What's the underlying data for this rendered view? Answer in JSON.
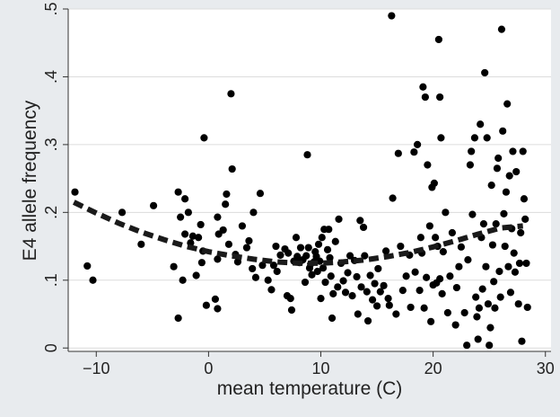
{
  "chart_data": {
    "type": "scatter",
    "title": "",
    "xlabel": "mean temperature (C)",
    "ylabel": "E4 allele frequency",
    "xlim": [
      -12.5,
      30.5
    ],
    "ylim": [
      -0.005,
      0.5
    ],
    "x_ticks": [
      -10,
      0,
      10,
      20,
      30
    ],
    "x_tick_labels": [
      "−10",
      "0",
      "10",
      "20",
      "30"
    ],
    "y_ticks": [
      0,
      0.1,
      0.2,
      0.3,
      0.4,
      0.5
    ],
    "y_tick_labels": [
      "0",
      ".1",
      ".2",
      ".3",
      ".4",
      ".5"
    ],
    "grid": "horizontal",
    "legend": "none",
    "colors": {
      "page_bg": "#e8ebee",
      "plot_bg": "#ffffff",
      "points": "#000000",
      "fit_line": "#1a1a1a",
      "grid": "#dcdcdc"
    },
    "points": [
      [
        -11.9,
        0.23
      ],
      [
        -10.8,
        0.121
      ],
      [
        -10.3,
        0.1
      ],
      [
        -7.7,
        0.2
      ],
      [
        -6.0,
        0.153
      ],
      [
        -4.9,
        0.21
      ],
      [
        -3.1,
        0.12
      ],
      [
        -2.7,
        0.044
      ],
      [
        -2.7,
        0.23
      ],
      [
        -2.5,
        0.193
      ],
      [
        -2.3,
        0.1
      ],
      [
        -2.1,
        0.22
      ],
      [
        -2.1,
        0.168
      ],
      [
        -1.8,
        0.2
      ],
      [
        -1.6,
        0.155
      ],
      [
        -1.4,
        0.165
      ],
      [
        -1.1,
        0.107
      ],
      [
        -0.9,
        0.163
      ],
      [
        -0.7,
        0.182
      ],
      [
        -0.6,
        0.126
      ],
      [
        -0.5,
        0.143
      ],
      [
        -0.4,
        0.31
      ],
      [
        -0.2,
        0.063
      ],
      [
        0.6,
        0.072
      ],
      [
        0.8,
        0.058
      ],
      [
        0.8,
        0.131
      ],
      [
        0.8,
        0.193
      ],
      [
        0.9,
        0.168
      ],
      [
        1.3,
        0.174
      ],
      [
        1.5,
        0.212
      ],
      [
        1.6,
        0.227
      ],
      [
        1.8,
        0.153
      ],
      [
        2.0,
        0.375
      ],
      [
        2.1,
        0.264
      ],
      [
        2.4,
        0.138
      ],
      [
        2.6,
        0.127
      ],
      [
        3.0,
        0.18
      ],
      [
        3.4,
        0.148
      ],
      [
        3.6,
        0.158
      ],
      [
        3.9,
        0.117
      ],
      [
        4.0,
        0.2
      ],
      [
        4.2,
        0.104
      ],
      [
        4.6,
        0.228
      ],
      [
        4.8,
        0.122
      ],
      [
        5.3,
        0.1
      ],
      [
        5.6,
        0.086
      ],
      [
        5.8,
        0.122
      ],
      [
        6.0,
        0.15
      ],
      [
        6.1,
        0.113
      ],
      [
        6.4,
        0.137
      ],
      [
        6.8,
        0.146
      ],
      [
        7.0,
        0.077
      ],
      [
        7.1,
        0.14
      ],
      [
        7.3,
        0.073
      ],
      [
        7.4,
        0.056
      ],
      [
        7.6,
        0.128
      ],
      [
        7.8,
        0.163
      ],
      [
        7.9,
        0.135
      ],
      [
        8.1,
        0.126
      ],
      [
        8.2,
        0.148
      ],
      [
        8.4,
        0.13
      ],
      [
        8.6,
        0.097
      ],
      [
        8.7,
        0.136
      ],
      [
        8.8,
        0.285
      ],
      [
        8.9,
        0.148
      ],
      [
        9.0,
        0.118
      ],
      [
        9.1,
        0.124
      ],
      [
        9.2,
        0.108
      ],
      [
        9.4,
        0.127
      ],
      [
        9.5,
        0.142
      ],
      [
        9.6,
        0.135
      ],
      [
        9.7,
        0.113
      ],
      [
        9.8,
        0.153
      ],
      [
        9.9,
        0.128
      ],
      [
        10.0,
        0.073
      ],
      [
        10.1,
        0.163
      ],
      [
        10.2,
        0.118
      ],
      [
        10.3,
        0.175
      ],
      [
        10.4,
        0.097
      ],
      [
        10.6,
        0.145
      ],
      [
        10.7,
        0.175
      ],
      [
        10.8,
        0.133
      ],
      [
        10.9,
        0.106
      ],
      [
        11.0,
        0.044
      ],
      [
        11.1,
        0.08
      ],
      [
        11.3,
        0.157
      ],
      [
        11.5,
        0.09
      ],
      [
        11.6,
        0.19
      ],
      [
        11.8,
        0.125
      ],
      [
        12.0,
        0.099
      ],
      [
        12.2,
        0.082
      ],
      [
        12.4,
        0.111
      ],
      [
        12.6,
        0.136
      ],
      [
        12.8,
        0.077
      ],
      [
        13.0,
        0.129
      ],
      [
        13.2,
        0.105
      ],
      [
        13.3,
        0.05
      ],
      [
        13.5,
        0.188
      ],
      [
        13.6,
        0.09
      ],
      [
        13.8,
        0.178
      ],
      [
        13.9,
        0.136
      ],
      [
        14.1,
        0.083
      ],
      [
        14.2,
        0.04
      ],
      [
        14.4,
        0.107
      ],
      [
        14.6,
        0.071
      ],
      [
        14.8,
        0.095
      ],
      [
        15.0,
        0.062
      ],
      [
        15.1,
        0.117
      ],
      [
        15.3,
        0.083
      ],
      [
        15.6,
        0.092
      ],
      [
        15.8,
        0.143
      ],
      [
        16.0,
        0.073
      ],
      [
        16.1,
        0.063
      ],
      [
        16.3,
        0.49
      ],
      [
        16.4,
        0.221
      ],
      [
        16.7,
        0.05
      ],
      [
        16.9,
        0.287
      ],
      [
        17.1,
        0.15
      ],
      [
        17.3,
        0.085
      ],
      [
        17.6,
        0.106
      ],
      [
        17.9,
        0.137
      ],
      [
        18.0,
        0.06
      ],
      [
        18.3,
        0.289
      ],
      [
        18.4,
        0.112
      ],
      [
        18.6,
        0.3
      ],
      [
        18.8,
        0.085
      ],
      [
        18.9,
        0.163
      ],
      [
        19.0,
        0.14
      ],
      [
        19.1,
        0.385
      ],
      [
        19.2,
        0.059
      ],
      [
        19.3,
        0.37
      ],
      [
        19.4,
        0.104
      ],
      [
        19.5,
        0.27
      ],
      [
        19.7,
        0.18
      ],
      [
        19.8,
        0.039
      ],
      [
        19.9,
        0.237
      ],
      [
        20.0,
        0.093
      ],
      [
        20.1,
        0.243
      ],
      [
        20.2,
        0.163
      ],
      [
        20.3,
        0.096
      ],
      [
        20.4,
        0.15
      ],
      [
        20.5,
        0.455
      ],
      [
        20.6,
        0.37
      ],
      [
        20.6,
        0.102
      ],
      [
        20.7,
        0.31
      ],
      [
        20.8,
        0.08
      ],
      [
        20.9,
        0.142
      ],
      [
        21.1,
        0.2
      ],
      [
        21.3,
        0.052
      ],
      [
        21.5,
        0.106
      ],
      [
        21.7,
        0.17
      ],
      [
        22.0,
        0.034
      ],
      [
        22.1,
        0.089
      ],
      [
        22.3,
        0.12
      ],
      [
        22.5,
        0.149
      ],
      [
        22.8,
        0.052
      ],
      [
        23.0,
        0.004
      ],
      [
        23.1,
        0.13
      ],
      [
        23.3,
        0.27
      ],
      [
        23.4,
        0.29
      ],
      [
        23.5,
        0.197
      ],
      [
        23.7,
        0.31
      ],
      [
        23.8,
        0.075
      ],
      [
        23.9,
        0.046
      ],
      [
        24.0,
        0.013
      ],
      [
        24.1,
        0.059
      ],
      [
        24.2,
        0.33
      ],
      [
        24.3,
        0.163
      ],
      [
        24.4,
        0.087
      ],
      [
        24.5,
        0.183
      ],
      [
        24.6,
        0.406
      ],
      [
        24.7,
        0.12
      ],
      [
        24.8,
        0.31
      ],
      [
        24.9,
        0.065
      ],
      [
        25.0,
        0.004
      ],
      [
        25.1,
        0.03
      ],
      [
        25.2,
        0.24
      ],
      [
        25.3,
        0.152
      ],
      [
        25.4,
        0.098
      ],
      [
        25.5,
        0.059
      ],
      [
        25.6,
        0.183
      ],
      [
        25.7,
        0.265
      ],
      [
        25.8,
        0.28
      ],
      [
        25.9,
        0.113
      ],
      [
        26.0,
        0.075
      ],
      [
        26.1,
        0.47
      ],
      [
        26.2,
        0.32
      ],
      [
        26.3,
        0.198
      ],
      [
        26.4,
        0.15
      ],
      [
        26.5,
        0.23
      ],
      [
        26.6,
        0.36
      ],
      [
        26.7,
        0.12
      ],
      [
        26.8,
        0.254
      ],
      [
        26.9,
        0.082
      ],
      [
        27.0,
        0.176
      ],
      [
        27.1,
        0.29
      ],
      [
        27.2,
        0.14
      ],
      [
        27.3,
        0.112
      ],
      [
        27.4,
        0.26
      ],
      [
        27.6,
        0.065
      ],
      [
        27.7,
        0.125
      ],
      [
        27.8,
        0.17
      ],
      [
        27.9,
        0.01
      ],
      [
        28.0,
        0.29
      ],
      [
        28.1,
        0.22
      ],
      [
        28.2,
        0.19
      ],
      [
        28.3,
        0.125
      ],
      [
        28.4,
        0.06
      ]
    ],
    "fit_line": {
      "style": "dashed",
      "points": [
        [
          -12,
          0.215
        ],
        [
          -10,
          0.199
        ],
        [
          -8,
          0.184
        ],
        [
          -6,
          0.171
        ],
        [
          -4,
          0.16
        ],
        [
          -2,
          0.15
        ],
        [
          0,
          0.142
        ],
        [
          2,
          0.136
        ],
        [
          4,
          0.131
        ],
        [
          6,
          0.127
        ],
        [
          8,
          0.125
        ],
        [
          10,
          0.125
        ],
        [
          12,
          0.127
        ],
        [
          14,
          0.13
        ],
        [
          16,
          0.135
        ],
        [
          18,
          0.141
        ],
        [
          20,
          0.149
        ],
        [
          22,
          0.158
        ],
        [
          24,
          0.168
        ],
        [
          26,
          0.177
        ],
        [
          28,
          0.18
        ]
      ]
    }
  }
}
